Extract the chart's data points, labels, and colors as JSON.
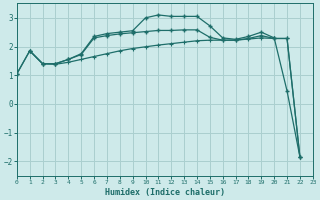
{
  "xlabel": "Humidex (Indice chaleur)",
  "xlim": [
    0,
    23
  ],
  "ylim": [
    -2.5,
    3.5
  ],
  "yticks": [
    -2,
    -1,
    0,
    1,
    2,
    3
  ],
  "xticks": [
    0,
    1,
    2,
    3,
    4,
    5,
    6,
    7,
    8,
    9,
    10,
    11,
    12,
    13,
    14,
    15,
    16,
    17,
    18,
    19,
    20,
    21,
    22,
    23
  ],
  "bg_color": "#ceeaea",
  "grid_color": "#aacfcf",
  "line_color": "#1e6e6a",
  "line1_x": [
    0,
    1,
    2,
    3,
    4,
    5,
    6,
    7,
    8,
    9,
    10,
    11,
    12,
    13,
    14,
    15,
    16,
    17,
    18,
    19,
    20,
    21,
    22
  ],
  "line1_y": [
    1.05,
    1.85,
    1.4,
    1.4,
    1.55,
    1.75,
    2.35,
    2.45,
    2.5,
    2.55,
    3.0,
    3.1,
    3.05,
    3.05,
    3.05,
    2.72,
    2.3,
    2.25,
    2.35,
    2.5,
    2.3,
    0.45,
    -1.85
  ],
  "line2_x": [
    0,
    1,
    2,
    3,
    4,
    5,
    6,
    7,
    8,
    9,
    10,
    11,
    12,
    13,
    14,
    15,
    16,
    17,
    18,
    19,
    20,
    21,
    22
  ],
  "line2_y": [
    1.05,
    1.85,
    1.4,
    1.4,
    1.55,
    1.72,
    2.3,
    2.38,
    2.44,
    2.48,
    2.52,
    2.56,
    2.56,
    2.58,
    2.58,
    2.32,
    2.22,
    2.22,
    2.28,
    2.38,
    2.28,
    2.28,
    -1.85
  ],
  "line3_x": [
    1,
    2,
    3,
    4,
    5,
    6,
    7,
    8,
    9,
    10,
    11,
    12,
    13,
    14,
    15,
    16,
    17,
    18,
    19,
    20,
    21,
    22
  ],
  "line3_y": [
    1.85,
    1.4,
    1.38,
    1.45,
    1.55,
    1.65,
    1.75,
    1.85,
    1.93,
    1.99,
    2.05,
    2.1,
    2.15,
    2.2,
    2.22,
    2.22,
    2.22,
    2.26,
    2.3,
    2.28,
    2.28,
    -1.85
  ]
}
